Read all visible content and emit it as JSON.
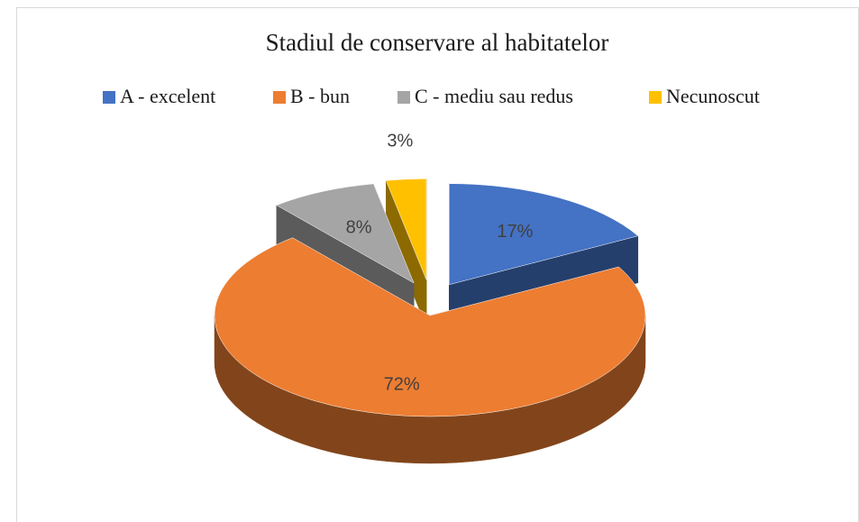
{
  "chart_data": {
    "type": "pie3d",
    "title": "Stadiul de conservare al habitatelor",
    "categories": [
      "A - excelent",
      "B - bun",
      "C - mediu sau redus",
      "Necunoscut"
    ],
    "values": [
      17,
      72,
      8,
      3
    ],
    "value_labels": [
      "17%",
      "72%",
      "8%",
      "3%"
    ],
    "colors": [
      "#4472c4",
      "#ed7d31",
      "#a5a5a5",
      "#ffc000"
    ],
    "exploded": [
      true,
      false,
      true,
      true
    ],
    "legend": "top"
  }
}
